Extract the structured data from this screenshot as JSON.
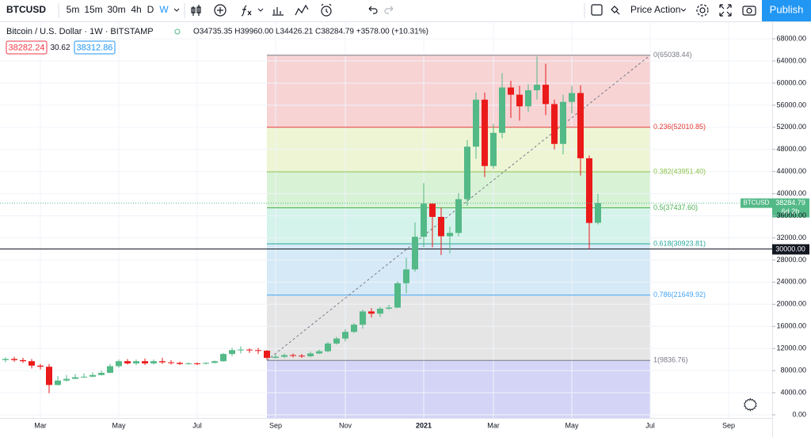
{
  "toolbar": {
    "symbol": "BTCUSD",
    "intervals": [
      "5m",
      "15m",
      "30m",
      "4h",
      "D",
      "W"
    ],
    "template": "Price Action",
    "publish": "Publish"
  },
  "legend": {
    "title": "Bitcoin / U.S. Dollar · 1W · BITSTAMP",
    "ohlc": "O34735.35 H39960.00 L34426.21 C38284.79 +3578.00 (+10.31%)",
    "bid": "38282.24",
    "spread": "30.62",
    "ask": "38312.86"
  },
  "chart_data": {
    "type": "candlestick",
    "categories": [
      null,
      null,
      null,
      null,
      "Mar",
      null,
      null,
      null,
      null,
      null,
      null,
      null,
      null,
      "May",
      null,
      null,
      null,
      null,
      null,
      null,
      null,
      null,
      "Jul",
      null,
      null,
      null,
      null,
      null,
      null,
      null,
      null,
      "Sep",
      null,
      null,
      null,
      null,
      null,
      null,
      null,
      "Nov",
      null,
      null,
      null,
      null,
      null,
      null,
      null,
      null,
      "2021",
      null,
      null,
      null,
      null,
      null,
      null,
      null,
      "Mar",
      null,
      null,
      null,
      null,
      null,
      null,
      null,
      null,
      "May",
      null,
      null,
      null,
      null,
      null,
      null,
      null,
      null,
      "Jul",
      null,
      null,
      null,
      null,
      null,
      null,
      null,
      null,
      "Sep"
    ],
    "open": [
      9900,
      10100,
      9900,
      9700,
      8900,
      8700,
      5400,
      6200,
      6500,
      6800,
      6900,
      7200,
      7600,
      8800,
      9700,
      9300,
      9700,
      9300,
      9700,
      9500,
      9400,
      9200,
      9300,
      9250,
      9400,
      9700,
      11000,
      11700,
      11800,
      11700,
      11600,
      10300,
      10500,
      10800,
      10700,
      10600,
      11100,
      11500,
      12900,
      13800,
      15000,
      16300,
      18700,
      18300,
      19200,
      19400,
      23800,
      26300,
      32200,
      38200,
      35800,
      32300,
      32900,
      39000,
      48500,
      57000,
      45000,
      51000,
      59200,
      57900,
      55800,
      58700,
      59700,
      56200,
      49000,
      56600,
      58200,
      46400,
      34735.35,
      null,
      null,
      null,
      null,
      null,
      null,
      null,
      null,
      null,
      null,
      null,
      null,
      null,
      null,
      null
    ],
    "high": [
      10400,
      10500,
      10300,
      10100,
      9200,
      9200,
      7000,
      7200,
      7400,
      7500,
      7700,
      8000,
      9200,
      10000,
      10100,
      10000,
      10200,
      10000,
      10300,
      9900,
      9600,
      9500,
      9500,
      9500,
      9800,
      11200,
      12100,
      12400,
      12000,
      12100,
      11700,
      10900,
      11100,
      11100,
      11000,
      11400,
      11800,
      13200,
      14100,
      15500,
      16600,
      19000,
      19300,
      19500,
      19900,
      24100,
      28400,
      34800,
      41900,
      38200,
      37500,
      34000,
      40100,
      49700,
      58300,
      58300,
      52600,
      61800,
      60400,
      59500,
      59800,
      64800,
      63500,
      57000,
      57900,
      59500,
      59600,
      46900,
      39960,
      null,
      null,
      null,
      null,
      null,
      null,
      null,
      null,
      null,
      null,
      null,
      null,
      null,
      null,
      null
    ],
    "low": [
      9500,
      9600,
      9400,
      8400,
      8200,
      3900,
      5300,
      6000,
      6500,
      6700,
      6800,
      7100,
      7500,
      8500,
      9100,
      9000,
      9000,
      9100,
      9200,
      9100,
      9000,
      9100,
      9000,
      9100,
      9300,
      9600,
      10600,
      11100,
      11200,
      11000,
      10000,
      10200,
      10300,
      10400,
      10300,
      10400,
      11000,
      11300,
      12700,
      13300,
      14800,
      15600,
      17600,
      17700,
      19000,
      19300,
      22000,
      25900,
      30300,
      30300,
      28900,
      29200,
      32300,
      37800,
      46300,
      43000,
      44500,
      50000,
      53700,
      53200,
      54800,
      57000,
      54200,
      48000,
      47100,
      54500,
      43300,
      30000,
      34426.21,
      null,
      null,
      null,
      null,
      null,
      null,
      null,
      null,
      null,
      null,
      null,
      null,
      null,
      null,
      null
    ],
    "close": [
      10100,
      9900,
      9700,
      8900,
      8700,
      5400,
      6200,
      6500,
      6800,
      6900,
      7200,
      7600,
      8800,
      9700,
      9300,
      9700,
      9300,
      9700,
      9500,
      9400,
      9200,
      9300,
      9250,
      9400,
      9700,
      11000,
      11700,
      11800,
      11700,
      11600,
      10300,
      10500,
      10800,
      10700,
      10600,
      11100,
      11500,
      12900,
      13800,
      15000,
      16300,
      18700,
      18300,
      19200,
      19400,
      23800,
      26300,
      32200,
      38200,
      35800,
      32300,
      32900,
      39000,
      48500,
      57000,
      45000,
      51000,
      59200,
      57900,
      55800,
      58700,
      59700,
      56200,
      49000,
      56600,
      58200,
      46400,
      34700,
      38284.79,
      null,
      null,
      null,
      null,
      null,
      null,
      null,
      null,
      null,
      null,
      null,
      null,
      null,
      null,
      null
    ],
    "up_color": "#53b987",
    "down_color": "#eb1a1a",
    "ylim": [
      -573,
      71016
    ],
    "yticks": [
      {
        "value": 0,
        "label": "0.00"
      },
      {
        "value": 4000,
        "label": "4000.00"
      },
      {
        "value": 8000,
        "label": "8000.00"
      },
      {
        "value": 12000,
        "label": "12000.00"
      },
      {
        "value": 16000,
        "label": "16000.00"
      },
      {
        "value": 20000,
        "label": "20000.00"
      },
      {
        "value": 24000,
        "label": "24000.00"
      },
      {
        "value": 28000,
        "label": "28000.00"
      },
      {
        "value": 32000,
        "label": "32000.00"
      },
      {
        "value": 36000,
        "label": "36000.00"
      },
      {
        "value": 40000,
        "label": "40000.00"
      },
      {
        "value": 44000,
        "label": "44000.00"
      },
      {
        "value": 48000,
        "label": "48000.00"
      },
      {
        "value": 52000,
        "label": "52000.00"
      },
      {
        "value": 56000,
        "label": "56000.00"
      },
      {
        "value": 60000,
        "label": "60000.00"
      },
      {
        "value": 64000,
        "label": "64000.00"
      },
      {
        "value": 68000,
        "label": "68000.00"
      }
    ],
    "grid": true,
    "fib_levels": [
      {
        "value": 65038.44,
        "label": "0(65038.44)",
        "color": "#787b86"
      },
      {
        "value": 52010.85,
        "label": "0.236(52010.85)",
        "color": "#e53935"
      },
      {
        "value": 43951.4,
        "label": "0.382(43951.40)",
        "color": "#8bc34a"
      },
      {
        "value": 37437.6,
        "label": "0.5(37437.60)",
        "color": "#4caf50"
      },
      {
        "value": 30923.81,
        "label": "0.618(30923.81)",
        "color": "#26a69a"
      },
      {
        "value": 21649.92,
        "label": "0.786(21649.92)",
        "color": "#42a5f5"
      },
      {
        "value": 9836.76,
        "label": "1(9836.76)",
        "color": "#787b86"
      }
    ],
    "fib_band_colors": [
      "#f7d3d4",
      "#eef5d5",
      "#d8f2d6",
      "#d4f3ea",
      "#d5e9f6",
      "#e5e5e5",
      "#d4d4f6"
    ],
    "horizontal_line": {
      "value": 30000,
      "label": "30000.00",
      "color": "#131722"
    },
    "last_price": {
      "name": "BTCUSD",
      "countdown": "6d 2h",
      "color": "#53b987"
    }
  }
}
